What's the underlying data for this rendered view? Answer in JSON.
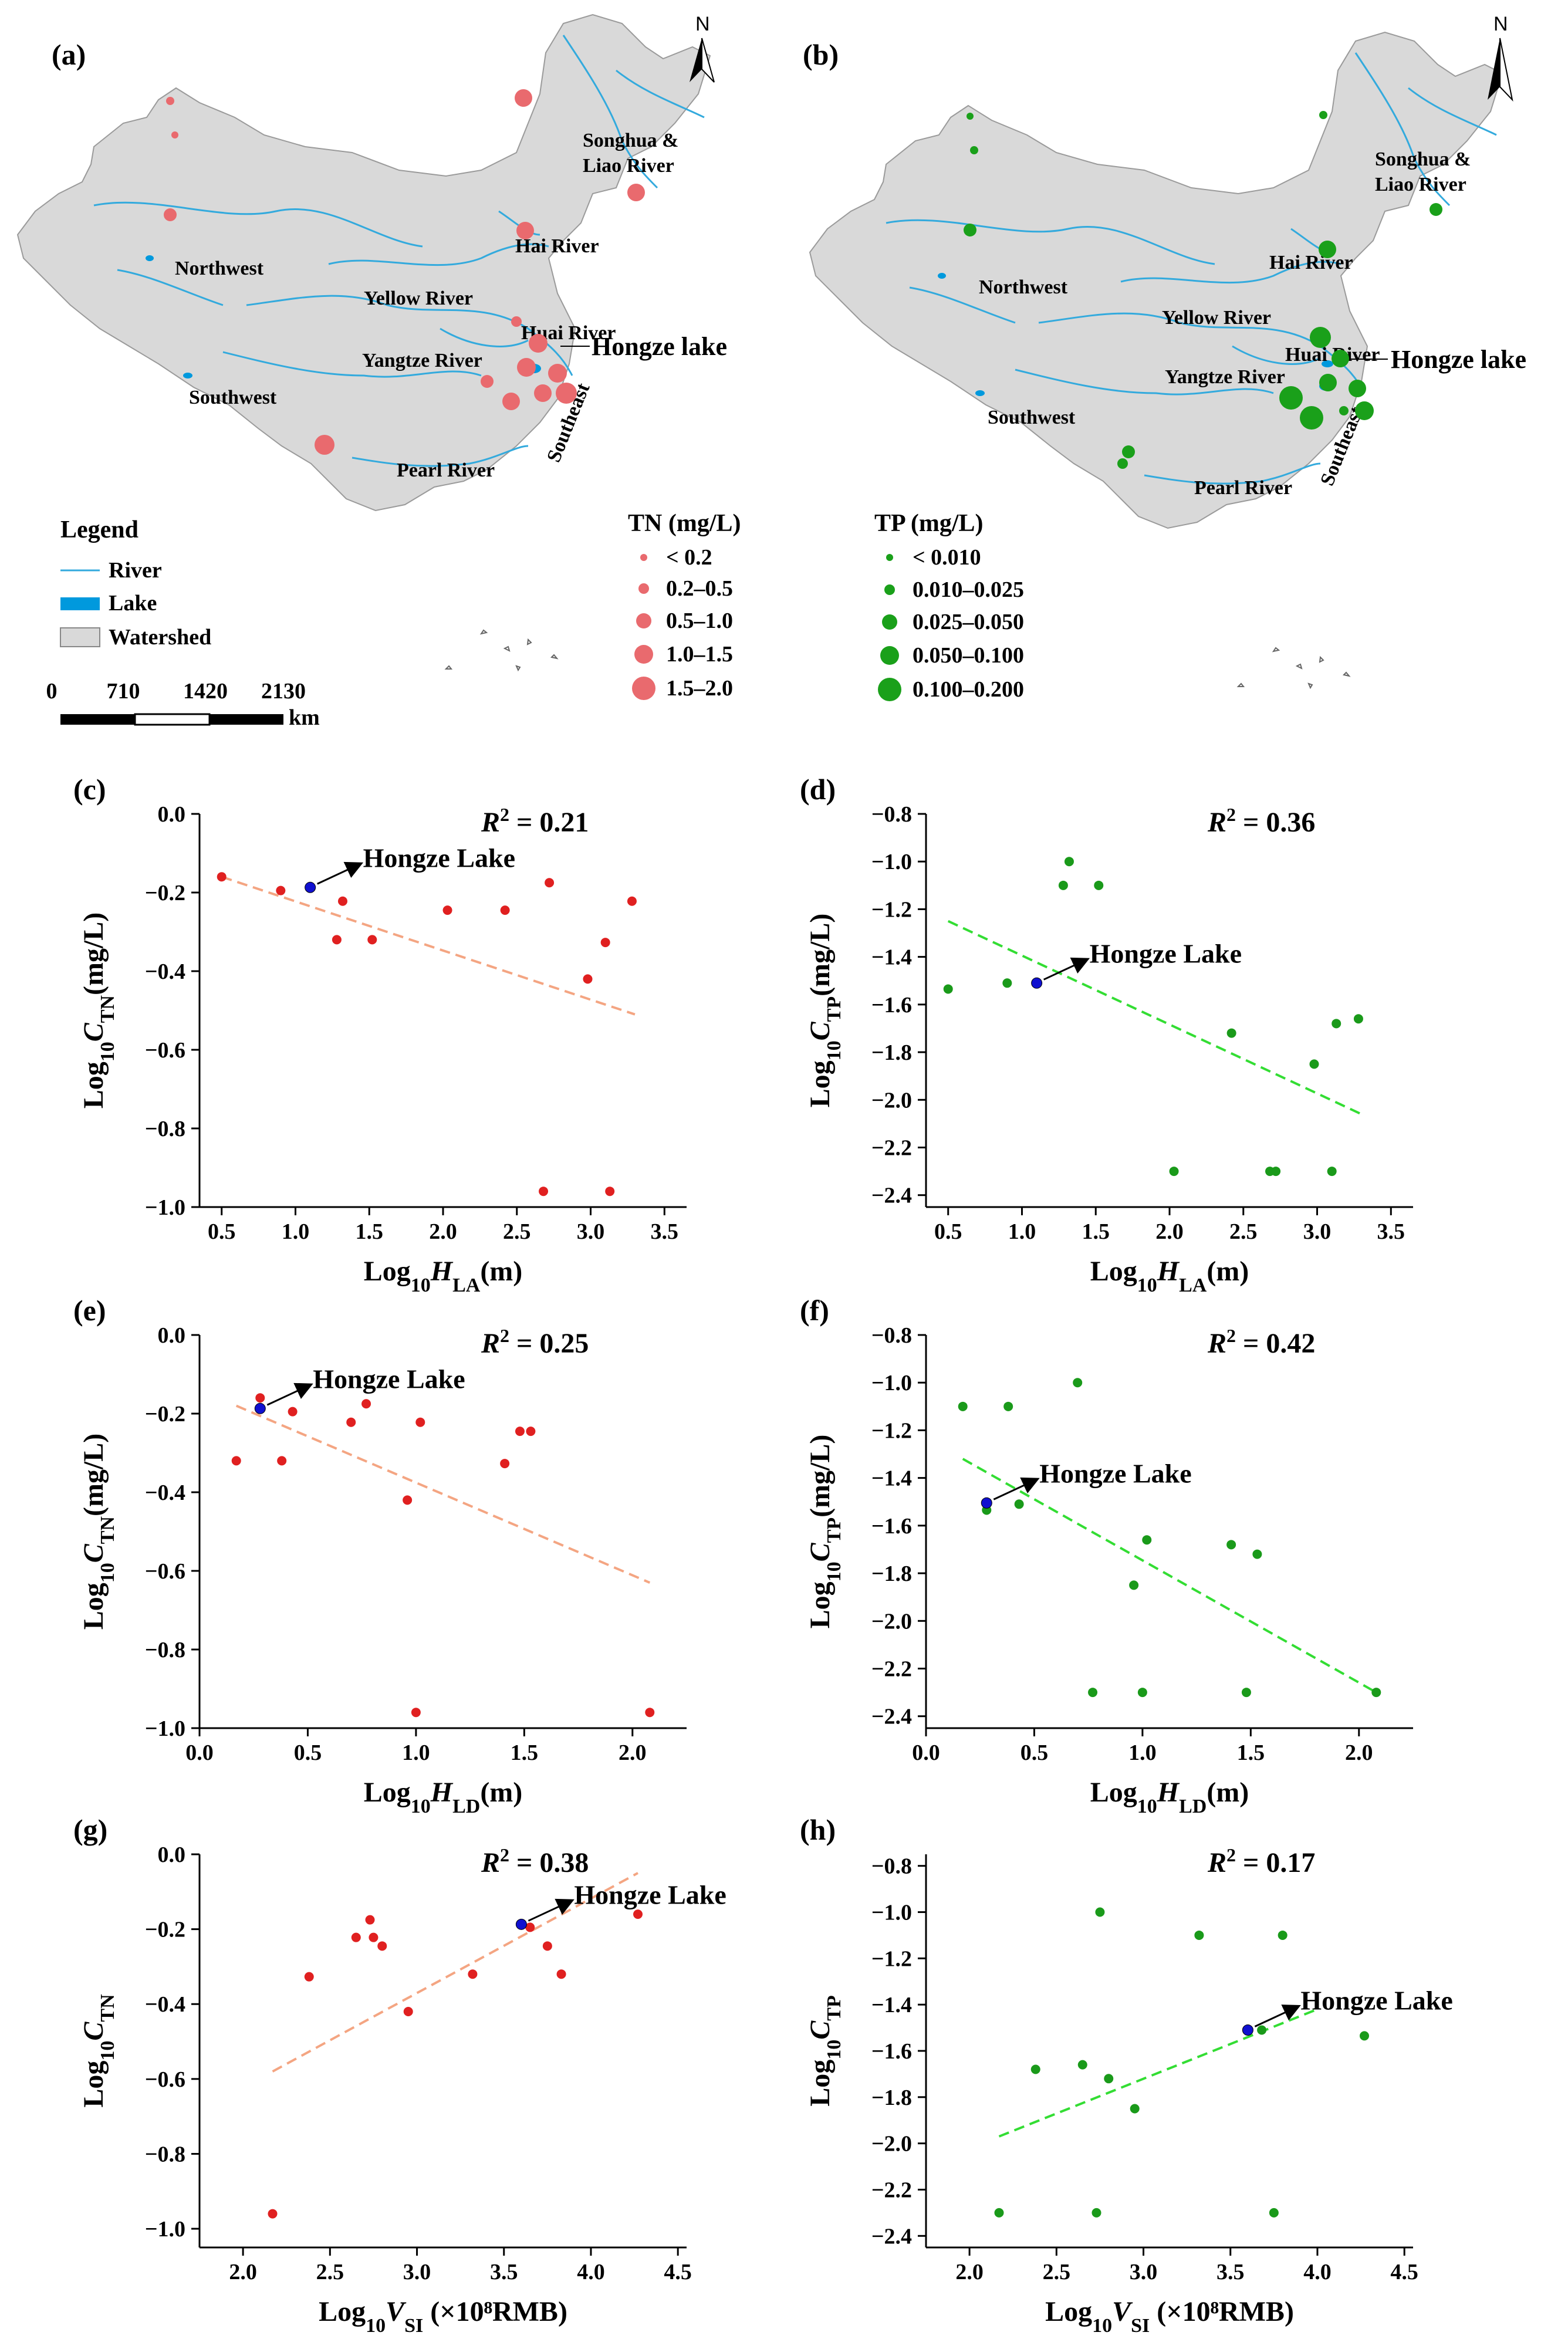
{
  "maps": {
    "a": {
      "label": "(a)",
      "north": "N",
      "hongze": "Hongze lake",
      "regions": [
        "Songhua &",
        "Liao River",
        "Hai River",
        "Northwest",
        "Yellow River",
        "Huai River",
        "Yangtze River",
        "Southwest",
        "Southeast",
        "Pearl River"
      ],
      "legend_title": "Legend",
      "legend_items": [
        "River",
        "Lake",
        "Watershed"
      ],
      "scale_ticks": [
        "0",
        "710",
        "1420",
        "2130"
      ],
      "scale_unit": "km",
      "size_title": "TN (mg/L)",
      "size_items": [
        "< 0.2",
        "0.2–0.5",
        "0.5–1.0",
        "1.0–1.5",
        "1.5–2.0"
      ],
      "colors": {
        "watershed": "#d9d9d9",
        "river": "#33aadd",
        "lake": "#0099dd",
        "point": "#e96a6e"
      }
    },
    "b": {
      "label": "(b)",
      "north": "N",
      "hongze": "Hongze lake",
      "regions": [
        "Songhua &",
        "Liao River",
        "Hai River",
        "Northwest",
        "Yellow River",
        "Huai River",
        "Yangtze River",
        "Southwest",
        "Southeast",
        "Pearl River"
      ],
      "size_title": "TP (mg/L)",
      "size_items": [
        "< 0.010",
        "0.010–0.025",
        "0.025–0.050",
        "0.050–0.100",
        "0.100–0.200"
      ],
      "colors": {
        "point": "#1aa01a"
      }
    }
  },
  "chart_data": [
    {
      "panel": "(c)",
      "type": "scatter",
      "xlabel_pre": "Log",
      "xlabel_sub": "10",
      "xlabel_var": "H",
      "xlabel_vsub": "LA",
      "xlabel_post": "(m)",
      "ylabel_pre": "Log",
      "ylabel_sub": "10",
      "ylabel_var": "C",
      "ylabel_vsub": "TN",
      "ylabel_post": "(mg/L)",
      "xlim": [
        0.35,
        3.65
      ],
      "ylim": [
        -1.0,
        0.0
      ],
      "xticks": [
        "0.5",
        "1.0",
        "1.5",
        "2.0",
        "2.5",
        "3.0",
        "3.5"
      ],
      "yticks": [
        "0.0",
        "−0.2",
        "−0.4",
        "−0.6",
        "−0.8",
        "−1.0"
      ],
      "r2": "0.21",
      "annotation": "Hongze Lake",
      "x": [
        0.5,
        0.9,
        1.32,
        1.28,
        1.52,
        2.03,
        2.42,
        2.72,
        2.98,
        3.1,
        3.28,
        2.68,
        3.13
      ],
      "y": [
        -0.16,
        -0.195,
        -0.222,
        -0.32,
        -0.32,
        -0.245,
        -0.245,
        -0.175,
        -0.42,
        -0.327,
        -0.222,
        -0.96,
        -0.96
      ],
      "highlight": {
        "x": 1.1,
        "y": -0.187
      },
      "fit": {
        "x": [
          0.5,
          3.3
        ],
        "y": [
          -0.16,
          -0.51
        ]
      },
      "point_color": "#e02020",
      "fit_color": "#f4a582"
    },
    {
      "panel": "(d)",
      "type": "scatter",
      "xlabel_pre": "Log",
      "xlabel_sub": "10",
      "xlabel_var": "H",
      "xlabel_vsub": "LA",
      "xlabel_post": "(m)",
      "ylabel_pre": "Log",
      "ylabel_sub": "10",
      "ylabel_var": "C",
      "ylabel_vsub": "TP",
      "ylabel_post": "(mg/L)",
      "xlim": [
        0.35,
        3.65
      ],
      "ylim": [
        -2.45,
        -0.8
      ],
      "xticks": [
        "0.5",
        "1.0",
        "1.5",
        "2.0",
        "2.5",
        "3.0",
        "3.5"
      ],
      "yticks": [
        "−0.8",
        "−1.0",
        "−1.2",
        "−1.4",
        "−1.6",
        "−1.8",
        "−2.0",
        "−2.2",
        "−2.4"
      ],
      "r2": "0.36",
      "annotation": "Hongze Lake",
      "x": [
        0.5,
        0.9,
        1.28,
        1.32,
        1.52,
        2.42,
        2.03,
        2.68,
        2.72,
        3.1,
        3.28,
        2.98,
        3.13
      ],
      "y": [
        -1.535,
        -1.51,
        -1.1,
        -1.0,
        -1.1,
        -1.72,
        -2.3,
        -2.3,
        -2.3,
        -2.3,
        -1.66,
        -1.85,
        -1.68
      ],
      "highlight": {
        "x": 1.1,
        "y": -1.51
      },
      "fit": {
        "x": [
          0.5,
          3.3
        ],
        "y": [
          -1.25,
          -2.06
        ]
      },
      "point_color": "#1a9a1a",
      "fit_color": "#33dd33"
    },
    {
      "panel": "(e)",
      "type": "scatter",
      "xlabel_pre": "Log",
      "xlabel_sub": "10",
      "xlabel_var": "H",
      "xlabel_vsub": "LD",
      "xlabel_post": "(m)",
      "ylabel_pre": "Log",
      "ylabel_sub": "10",
      "ylabel_var": "C",
      "ylabel_vsub": "TN",
      "ylabel_post": "(mg/L)",
      "xlim": [
        0.0,
        2.25
      ],
      "ylim": [
        -1.0,
        0.0
      ],
      "xticks": [
        "0.0",
        "0.5",
        "1.0",
        "1.5",
        "2.0"
      ],
      "yticks": [
        "0.0",
        "−0.2",
        "−0.4",
        "−0.6",
        "−0.8",
        "−1.0"
      ],
      "r2": "0.25",
      "annotation": "Hongze Lake",
      "x": [
        0.17,
        0.28,
        0.38,
        0.43,
        0.7,
        0.77,
        0.96,
        1.02,
        1.41,
        1.48,
        1.53,
        1.0,
        2.08
      ],
      "y": [
        -0.32,
        -0.16,
        -0.32,
        -0.195,
        -0.222,
        -0.175,
        -0.42,
        -0.222,
        -0.327,
        -0.245,
        -0.245,
        -0.96,
        -0.96
      ],
      "highlight": {
        "x": 0.28,
        "y": -0.187
      },
      "fit": {
        "x": [
          0.17,
          2.08
        ],
        "y": [
          -0.18,
          -0.63
        ]
      },
      "point_color": "#e02020",
      "fit_color": "#f4a582"
    },
    {
      "panel": "(f)",
      "type": "scatter",
      "xlabel_pre": "Log",
      "xlabel_sub": "10",
      "xlabel_var": "H",
      "xlabel_vsub": "LD",
      "xlabel_post": "(m)",
      "ylabel_pre": "Log",
      "ylabel_sub": "10",
      "ylabel_var": "C",
      "ylabel_vsub": "TP",
      "ylabel_post": "(mg/L)",
      "xlim": [
        0.0,
        2.25
      ],
      "ylim": [
        -2.45,
        -0.8
      ],
      "xticks": [
        "0.0",
        "0.5",
        "1.0",
        "1.5",
        "2.0"
      ],
      "yticks": [
        "−0.8",
        "−1.0",
        "−1.2",
        "−1.4",
        "−1.6",
        "−1.8",
        "−2.0",
        "−2.2",
        "−2.4"
      ],
      "r2": "0.42",
      "annotation": "Hongze Lake",
      "x": [
        0.17,
        0.38,
        0.7,
        0.28,
        0.43,
        1.02,
        0.96,
        1.41,
        1.53,
        0.77,
        1.0,
        1.48,
        2.08
      ],
      "y": [
        -1.1,
        -1.1,
        -1.0,
        -1.535,
        -1.51,
        -1.66,
        -1.85,
        -1.68,
        -1.72,
        -2.3,
        -2.3,
        -2.3,
        -2.3
      ],
      "highlight": {
        "x": 0.28,
        "y": -1.505
      },
      "fit": {
        "x": [
          0.17,
          2.08
        ],
        "y": [
          -1.32,
          -2.3
        ]
      },
      "point_color": "#1a9a1a",
      "fit_color": "#33dd33"
    },
    {
      "panel": "(g)",
      "type": "scatter",
      "xlabel_pre": "Log",
      "xlabel_sub": "10",
      "xlabel_var": "V",
      "xlabel_vsub": "SI",
      "xlabel_post": " (×10⁸RMB)",
      "ylabel_pre": "Log",
      "ylabel_sub": "10",
      "ylabel_var": "C",
      "ylabel_vsub": "TN",
      "ylabel_post": "",
      "xlim": [
        1.75,
        4.55
      ],
      "ylim": [
        -1.05,
        0.0
      ],
      "xticks": [
        "2.0",
        "2.5",
        "3.0",
        "3.5",
        "4.0",
        "4.5"
      ],
      "yticks": [
        "0.0",
        "−0.2",
        "−0.4",
        "−0.6",
        "−0.8",
        "−1.0"
      ],
      "r2": "0.38",
      "annotation": "Hongze Lake",
      "x": [
        2.17,
        2.38,
        2.65,
        2.73,
        2.75,
        2.8,
        2.95,
        3.32,
        3.65,
        3.75,
        3.83,
        4.27
      ],
      "y": [
        -0.96,
        -0.327,
        -0.222,
        -0.175,
        -0.222,
        -0.245,
        -0.42,
        -0.32,
        -0.195,
        -0.245,
        -0.32,
        -0.16
      ],
      "highlight": {
        "x": 3.6,
        "y": -0.187
      },
      "fit": {
        "x": [
          2.17,
          4.27
        ],
        "y": [
          -0.58,
          -0.05
        ]
      },
      "point_color": "#e02020",
      "fit_color": "#f4a582"
    },
    {
      "panel": "(h)",
      "type": "scatter",
      "xlabel_pre": "Log",
      "xlabel_sub": "10",
      "xlabel_var": "V",
      "xlabel_vsub": "SI",
      "xlabel_post": " (×10⁸RMB)",
      "ylabel_pre": "Log",
      "ylabel_sub": "10",
      "ylabel_var": "C",
      "ylabel_vsub": "TP",
      "ylabel_post": "",
      "xlim": [
        1.75,
        4.55
      ],
      "ylim": [
        -2.45,
        -0.75
      ],
      "xticks": [
        "2.0",
        "2.5",
        "3.0",
        "3.5",
        "4.0",
        "4.5"
      ],
      "yticks": [
        "−0.8",
        "−1.0",
        "−1.2",
        "−1.4",
        "−1.6",
        "−1.8",
        "−2.0",
        "−2.2",
        "−2.4"
      ],
      "r2": "0.17",
      "annotation": "Hongze Lake",
      "x": [
        2.17,
        2.38,
        2.65,
        2.73,
        2.75,
        2.8,
        2.95,
        3.32,
        3.68,
        3.75,
        3.8,
        4.27
      ],
      "y": [
        -2.3,
        -1.68,
        -1.66,
        -2.3,
        -1.0,
        -1.72,
        -1.85,
        -1.1,
        -1.51,
        -2.3,
        -1.1,
        -1.535
      ],
      "highlight": {
        "x": 3.6,
        "y": -1.51
      },
      "fit": {
        "x": [
          2.17,
          4.0
        ],
        "y": [
          -1.97,
          -1.42
        ]
      },
      "point_color": "#1a9a1a",
      "fit_color": "#33dd33"
    }
  ]
}
